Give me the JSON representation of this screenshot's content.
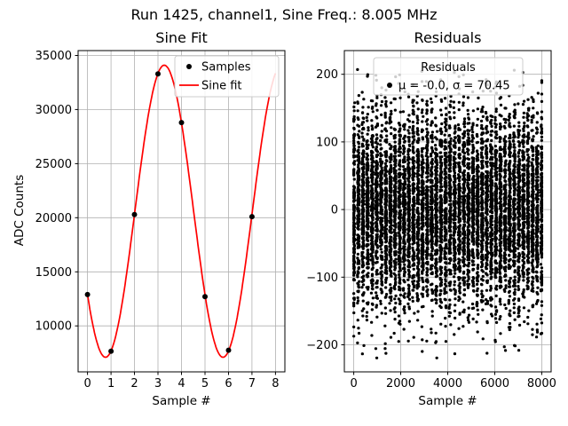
{
  "figure": {
    "title": "Run 1425, channel1, Sine Freq.: 8.005 MHz",
    "background": "#ffffff",
    "text_color": "#000000",
    "grid_color": "#b0b0b0"
  },
  "chart_data": [
    {
      "type": "scatter",
      "title": "Sine Fit",
      "xlabel": "Sample #",
      "ylabel": "ADC Counts",
      "xlim": [
        -0.4,
        8.4
      ],
      "ylim": [
        5750,
        35450
      ],
      "xticks": [
        0,
        1,
        2,
        3,
        4,
        5,
        6,
        7,
        8
      ],
      "yticks": [
        10000,
        15000,
        20000,
        25000,
        30000,
        35000
      ],
      "grid": true,
      "legend": {
        "position": "upper right",
        "entries": [
          {
            "label": "Samples",
            "marker": "dot",
            "color": "#000000"
          },
          {
            "label": "Sine fit",
            "marker": "line",
            "color": "#ff0000"
          }
        ]
      },
      "samples": {
        "x": [
          0,
          1,
          2,
          3,
          4,
          5,
          6,
          7
        ],
        "y": [
          12900,
          7650,
          20300,
          33300,
          28800,
          12700,
          7750,
          20100
        ],
        "color": "#000000"
      },
      "sine_fit": {
        "amplitude": 13500,
        "offset": 20600,
        "angular_freq_per_sample": 1.2566,
        "phase_rad": 3.749,
        "x_range": [
          0,
          8
        ],
        "color": "#ff0000"
      }
    },
    {
      "type": "scatter",
      "title": "Residuals",
      "xlabel": "Sample #",
      "ylabel": "",
      "xlim": [
        -400,
        8400
      ],
      "ylim": [
        -240,
        235
      ],
      "xticks": [
        0,
        2000,
        4000,
        6000,
        8000
      ],
      "yticks": [
        -200,
        -100,
        0,
        100,
        200
      ],
      "grid": true,
      "legend": {
        "position": "upper center",
        "title": "Residuals",
        "entries": [
          {
            "label": "μ = -0.0, σ = 70.45",
            "marker": "dot",
            "color": "#000000"
          }
        ]
      },
      "residuals": {
        "n_points": 8000,
        "mu": -0.0,
        "sigma": 70.45,
        "x_min": 0,
        "x_max": 8000,
        "y_clip": [
          -228,
          207
        ],
        "seed": 1425,
        "color": "#000000"
      }
    }
  ]
}
